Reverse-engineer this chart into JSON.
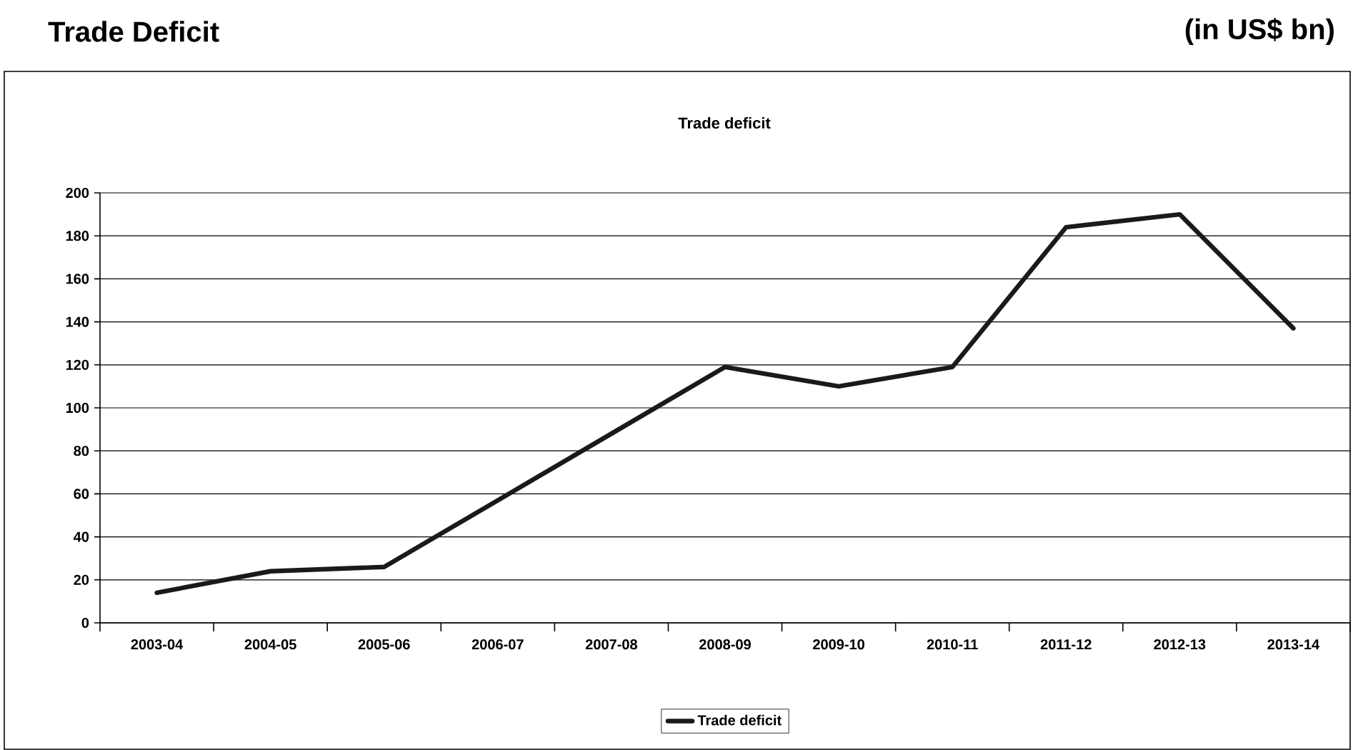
{
  "chart_data": {
    "type": "line",
    "title": "Trade Deficit",
    "subtitle": "Trade deficit",
    "annotations": [
      "(in US$ bn)"
    ],
    "categories": [
      "2003-04",
      "2004-05",
      "2005-06",
      "2006-07",
      "2007-08",
      "2008-09",
      "2009-10",
      "2010-11",
      "2011-12",
      "2012-13",
      "2013-14"
    ],
    "series": [
      {
        "name": "Trade deficit",
        "color": "#1a1a1a",
        "values": [
          14,
          24,
          26,
          57,
          88,
          119,
          110,
          119,
          184,
          190,
          137
        ]
      }
    ],
    "ylim": [
      0,
      200
    ],
    "yticks": [
      0,
      20,
      40,
      60,
      80,
      100,
      120,
      140,
      160,
      180,
      200
    ],
    "grid": "y",
    "legend": "bottom",
    "marker": "none",
    "line_style": "solid"
  }
}
